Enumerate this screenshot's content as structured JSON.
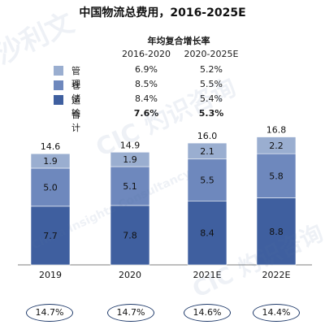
{
  "colors": {
    "mgmt": "#9aaed0",
    "storage": "#6e88bd",
    "transport": "#3f5f9f",
    "line": "#7f7f7f"
  },
  "chart_data": {
    "type": "bar",
    "title": "中国物流总费用，2016-2025E",
    "categories": [
      "2019",
      "2020",
      "2021E",
      "2022E"
    ],
    "series": [
      {
        "name": "运输",
        "values": [
          7.7,
          7.8,
          8.4,
          8.8
        ]
      },
      {
        "name": "仓储",
        "values": [
          5.0,
          5.1,
          5.5,
          5.8
        ]
      },
      {
        "name": "管理",
        "values": [
          1.9,
          1.9,
          2.1,
          2.2
        ]
      }
    ],
    "totals": [
      14.6,
      14.9,
      16.0,
      16.8
    ],
    "ratios": [
      "14.7%",
      "14.7%",
      "14.6%",
      "14.4%"
    ],
    "ylim": [
      0,
      17.5
    ]
  },
  "cagr_table": {
    "header": "年均复合增长率",
    "columns": [
      "2016-2020",
      "2020-2025E"
    ],
    "rows": [
      {
        "label": "管理",
        "values": [
          "6.9%",
          "5.2%"
        ]
      },
      {
        "label": "仓储",
        "values": [
          "8.5%",
          "5.5%"
        ]
      },
      {
        "label": "运输",
        "values": [
          "8.4%",
          "5.4%"
        ]
      },
      {
        "label": "合计",
        "values": [
          "7.6%",
          "5.3%"
        ]
      }
    ]
  },
  "watermarks": [
    "沙利文",
    "CIC 灼识咨询",
    "China Insights Consultancy"
  ]
}
